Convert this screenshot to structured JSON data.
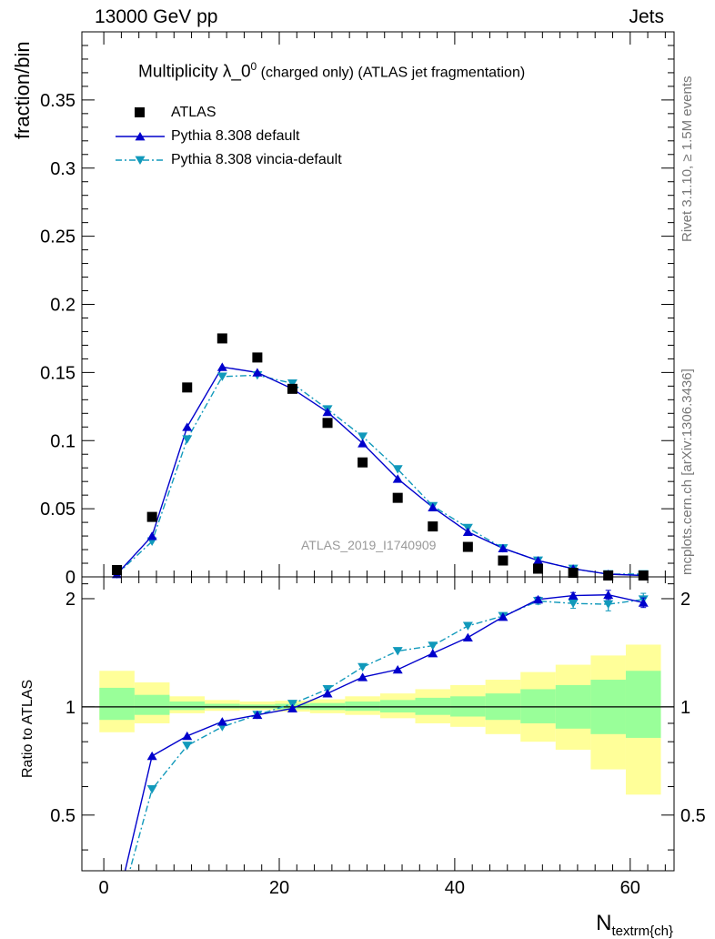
{
  "header": {
    "left": "13000 GeV pp",
    "right": "Jets"
  },
  "side_labels": {
    "top": "Rivet 3.1.10, ≥ 1.5M events",
    "bottom": "mcplots.cern.ch [arXiv:1306.3436]"
  },
  "chart_data": [
    {
      "type": "scatter",
      "title_main": "Multiplicity λ_0",
      "title_sup": "0",
      "title_tail": " (charged only) (ATLAS jet fragmentation)",
      "ylabel": "fraction/bin",
      "xlabel_main": "N",
      "xlabel_sub": "textrm{ch}",
      "annotation": "ATLAS_2019_I1740909",
      "xlim": [
        -2.5,
        65
      ],
      "ylim": [
        0,
        0.4
      ],
      "y_ticks": [
        "0",
        "0.05",
        "0.1",
        "0.15",
        "0.2",
        "0.25",
        "0.3",
        "0.35"
      ],
      "y_tick_values": [
        0,
        0.05,
        0.1,
        0.15,
        0.2,
        0.25,
        0.3,
        0.35
      ],
      "x": [
        1.5,
        5.5,
        9.5,
        13.5,
        17.5,
        21.5,
        25.5,
        29.5,
        33.5,
        37.5,
        41.5,
        45.5,
        49.5,
        53.5,
        57.5,
        61.5
      ],
      "series": [
        {
          "name": "ATLAS",
          "color": "#000000",
          "values": [
            0.005,
            0.044,
            0.139,
            0.175,
            0.161,
            0.138,
            0.113,
            0.084,
            0.058,
            0.037,
            0.022,
            0.012,
            0.006,
            0.003,
            0.001,
            0.001
          ]
        },
        {
          "name": "Pythia 8.308 default",
          "color": "#0000cc",
          "values": [
            0.002,
            0.03,
            0.11,
            0.154,
            0.15,
            0.138,
            0.121,
            0.098,
            0.072,
            0.051,
            0.033,
            0.021,
            0.012,
            0.006,
            0.002,
            0.001
          ]
        },
        {
          "name": "Pythia 8.308 vincia-default",
          "color": "#1199bb",
          "values": [
            0.002,
            0.026,
            0.101,
            0.147,
            0.148,
            0.142,
            0.123,
            0.103,
            0.079,
            0.052,
            0.036,
            0.021,
            0.012,
            0.006,
            0.002,
            0.002
          ]
        }
      ]
    },
    {
      "type": "line",
      "ylabel": "Ratio to ATLAS",
      "xlim": [
        -2.5,
        65
      ],
      "ylim": [
        0.35,
        2.3
      ],
      "x_ticks": [
        "0",
        "20",
        "40",
        "60"
      ],
      "x_tick_values": [
        0,
        20,
        40,
        60
      ],
      "y_ticks": [
        "0.5",
        "1",
        "2"
      ],
      "y_tick_values": [
        0.5,
        1,
        2
      ],
      "bin_edges": [
        -0.5,
        3.5,
        7.5,
        11.5,
        15.5,
        19.5,
        23.5,
        27.5,
        31.5,
        35.5,
        39.5,
        43.5,
        47.5,
        51.5,
        55.5,
        59.5,
        63.5
      ],
      "band_yellow": [
        [
          0.85,
          1.26
        ],
        [
          0.9,
          1.17
        ],
        [
          0.96,
          1.07
        ],
        [
          0.975,
          1.045
        ],
        [
          0.98,
          1.035
        ],
        [
          0.97,
          1.04
        ],
        [
          0.96,
          1.05
        ],
        [
          0.95,
          1.07
        ],
        [
          0.93,
          1.09
        ],
        [
          0.9,
          1.12
        ],
        [
          0.88,
          1.15
        ],
        [
          0.84,
          1.19
        ],
        [
          0.8,
          1.25
        ],
        [
          0.76,
          1.31
        ],
        [
          0.67,
          1.39
        ],
        [
          0.57,
          1.49
        ]
      ],
      "band_green": [
        [
          0.92,
          1.13
        ],
        [
          0.95,
          1.08
        ],
        [
          0.98,
          1.035
        ],
        [
          0.99,
          1.02
        ],
        [
          0.99,
          1.015
        ],
        [
          0.985,
          1.02
        ],
        [
          0.98,
          1.025
        ],
        [
          0.975,
          1.035
        ],
        [
          0.965,
          1.045
        ],
        [
          0.95,
          1.06
        ],
        [
          0.94,
          1.07
        ],
        [
          0.92,
          1.09
        ],
        [
          0.9,
          1.12
        ],
        [
          0.87,
          1.15
        ],
        [
          0.84,
          1.19
        ],
        [
          0.82,
          1.26
        ]
      ],
      "x": [
        1.5,
        5.5,
        9.5,
        13.5,
        17.5,
        21.5,
        25.5,
        29.5,
        33.5,
        37.5,
        41.5,
        45.5,
        49.5,
        53.5,
        57.5,
        61.5
      ],
      "series": [
        {
          "name": "Pythia 8.308 default",
          "color": "#0000cc",
          "values": [
            0.28,
            0.73,
            0.83,
            0.91,
            0.95,
            0.99,
            1.09,
            1.21,
            1.27,
            1.41,
            1.56,
            1.78,
            1.99,
            2.04,
            2.05,
            1.95
          ],
          "err": [
            0,
            0,
            0,
            0,
            0,
            0,
            0,
            0,
            0,
            0,
            0,
            0,
            0.03,
            0.04,
            0.06,
            0.06
          ]
        },
        {
          "name": "Pythia 8.308 vincia-default",
          "color": "#1199bb",
          "values": [
            0.26,
            0.59,
            0.78,
            0.88,
            0.95,
            1.02,
            1.12,
            1.29,
            1.43,
            1.48,
            1.68,
            1.79,
            1.97,
            1.94,
            1.93,
            1.99
          ],
          "err": [
            0,
            0,
            0,
            0,
            0,
            0,
            0,
            0,
            0,
            0,
            0,
            0,
            0.04,
            0.06,
            0.08,
            0.08
          ]
        }
      ]
    }
  ]
}
